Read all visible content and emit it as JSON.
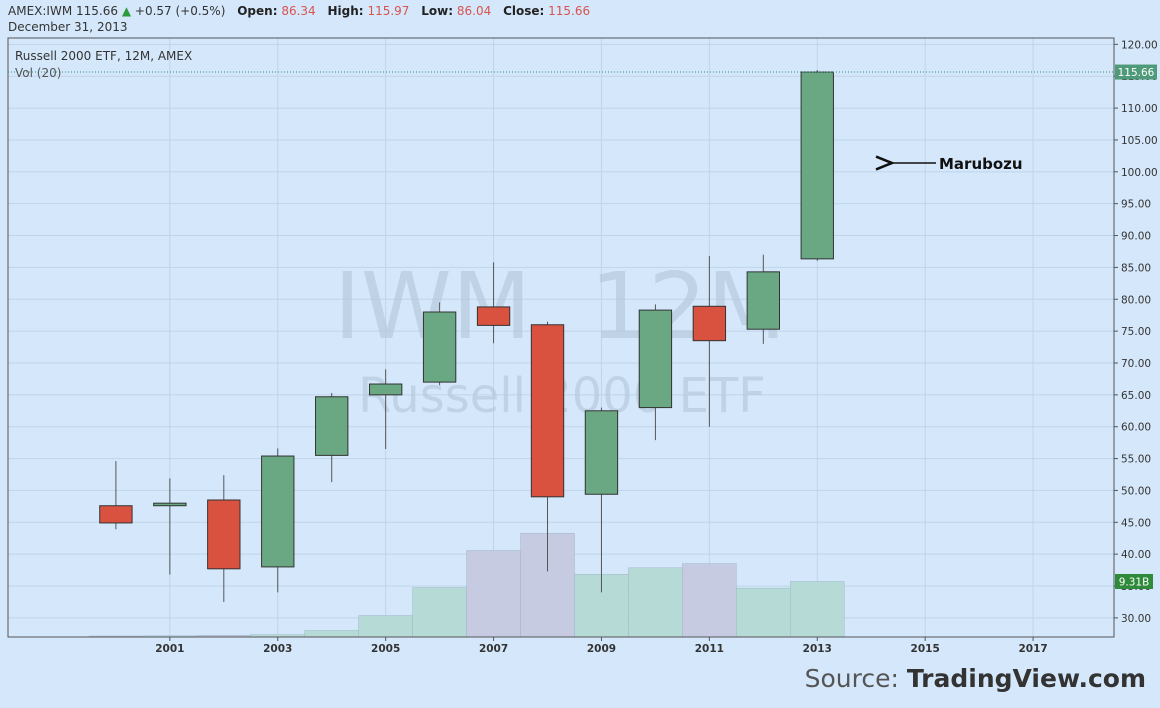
{
  "header": {
    "symbol": "AMEX:IWM",
    "last": "115.66",
    "change": "+0.57 (+0.5%)",
    "open_label": "Open:",
    "open": "86.34",
    "high_label": "High:",
    "high": "115.97",
    "low_label": "Low:",
    "low": "86.04",
    "close_label": "Close:",
    "close": "115.66",
    "date": "December 31, 2013"
  },
  "legend": {
    "series": "Russell 2000 ETF, 12M, AMEX",
    "volume": "Vol (20)"
  },
  "watermark": {
    "line1": "IWM, 12M",
    "line2": "Russell 2000 ETF"
  },
  "annotation": "Marubozu",
  "price_badge": "115.66",
  "volume_badge": "9.31B",
  "source": {
    "prefix": "Source: ",
    "brand": "TradingView.com"
  },
  "colors": {
    "up": "#6aa884",
    "down": "#d9523f",
    "background": "#d5e8fb",
    "volume_up": "#b6dbd7",
    "volume_down": "#c6cbe2"
  },
  "chart_data": {
    "type": "candlestick",
    "title": "Russell 2000 ETF, 12M, AMEX",
    "ylim": [
      27,
      121
    ],
    "y_ticks": [
      "30.00",
      "35.00",
      "40.00",
      "45.00",
      "50.00",
      "55.00",
      "60.00",
      "65.00",
      "70.00",
      "75.00",
      "80.00",
      "85.00",
      "90.00",
      "95.00",
      "100.00",
      "105.00",
      "110.00",
      "115.00",
      "120.00"
    ],
    "x_ticks": [
      "2001",
      "2003",
      "2005",
      "2007",
      "2009",
      "2011",
      "2013",
      "2015",
      "2017"
    ],
    "x_range": [
      1998.0,
      2018.5
    ],
    "candles": [
      {
        "year": 2000,
        "open": 47.6,
        "high": 54.6,
        "low": 43.9,
        "close": 44.9
      },
      {
        "year": 2001,
        "open": 47.6,
        "high": 51.9,
        "low": 36.8,
        "close": 48.0
      },
      {
        "year": 2002,
        "open": 48.5,
        "high": 52.4,
        "low": 32.5,
        "close": 37.7
      },
      {
        "year": 2003,
        "open": 38.0,
        "high": 56.6,
        "low": 34.0,
        "close": 55.4
      },
      {
        "year": 2004,
        "open": 55.5,
        "high": 65.3,
        "low": 51.3,
        "close": 64.7
      },
      {
        "year": 2005,
        "open": 65.0,
        "high": 69.0,
        "low": 56.5,
        "close": 66.7
      },
      {
        "year": 2006,
        "open": 67.0,
        "high": 79.5,
        "low": 66.5,
        "close": 78.0
      },
      {
        "year": 2007,
        "open": 78.8,
        "high": 85.8,
        "low": 73.1,
        "close": 75.9
      },
      {
        "year": 2008,
        "open": 76.0,
        "high": 76.5,
        "low": 37.3,
        "close": 49.0
      },
      {
        "year": 2009,
        "open": 49.4,
        "high": 63.0,
        "low": 34.0,
        "close": 62.5
      },
      {
        "year": 2010,
        "open": 63.0,
        "high": 79.2,
        "low": 57.9,
        "close": 78.3
      },
      {
        "year": 2011,
        "open": 78.9,
        "high": 86.8,
        "low": 60.0,
        "close": 73.5
      },
      {
        "year": 2012,
        "open": 75.3,
        "high": 87.0,
        "low": 73.0,
        "close": 84.3
      },
      {
        "year": 2013,
        "open": 86.34,
        "high": 115.97,
        "low": 86.04,
        "close": 115.66
      }
    ],
    "volume_unit": "billions",
    "volume": [
      {
        "year": 2000,
        "value": 0.1,
        "direction": "down"
      },
      {
        "year": 2001,
        "value": 0.2,
        "direction": "up"
      },
      {
        "year": 2002,
        "value": 0.3,
        "direction": "down"
      },
      {
        "year": 2003,
        "value": 0.4,
        "direction": "up"
      },
      {
        "year": 2004,
        "value": 1.1,
        "direction": "up"
      },
      {
        "year": 2005,
        "value": 3.6,
        "direction": "up"
      },
      {
        "year": 2006,
        "value": 8.3,
        "direction": "up"
      },
      {
        "year": 2007,
        "value": 14.5,
        "direction": "down"
      },
      {
        "year": 2008,
        "value": 17.4,
        "direction": "down"
      },
      {
        "year": 2009,
        "value": 10.5,
        "direction": "up"
      },
      {
        "year": 2010,
        "value": 11.6,
        "direction": "up"
      },
      {
        "year": 2011,
        "value": 12.3,
        "direction": "down"
      },
      {
        "year": 2012,
        "value": 8.2,
        "direction": "up"
      },
      {
        "year": 2013,
        "value": 9.31,
        "direction": "up"
      }
    ],
    "volume_max": 28
  }
}
